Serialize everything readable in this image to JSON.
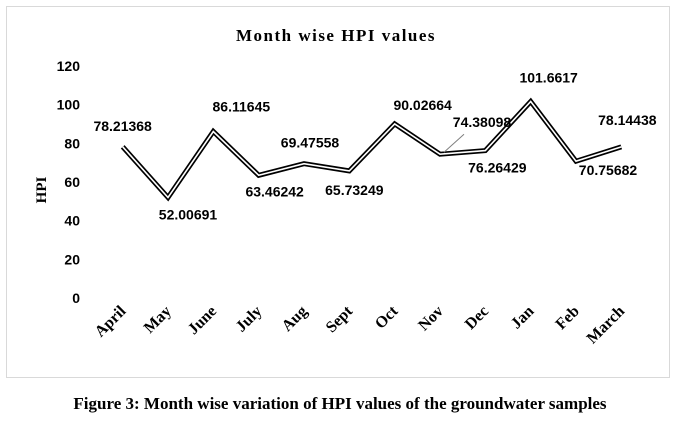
{
  "chart_data": {
    "type": "line",
    "title": "Month wise HPI values",
    "xlabel": "",
    "ylabel": "HPI",
    "ylim": [
      0,
      120
    ],
    "yticks": [
      0,
      20,
      40,
      60,
      80,
      100,
      120
    ],
    "grid": false,
    "legend": "none",
    "categories": [
      "April",
      "May",
      "June",
      "July",
      "Aug",
      "Sept",
      "Oct",
      "Nov",
      "Dec",
      "Jan",
      "Feb",
      "March"
    ],
    "series": [
      {
        "values": [
          78.21368,
          52.00691,
          86.11645,
          63.46242,
          69.47558,
          65.73249,
          90.02664,
          74.38098,
          76.26429,
          101.6617,
          70.75682,
          78.14438
        ],
        "labels": [
          "78.21368",
          "52.00691",
          "86.11645",
          "63.46242",
          "69.47558",
          "65.73249",
          "90.02664",
          "74.38098",
          "76.26429",
          "101.6617",
          "70.75682",
          "78.14438"
        ],
        "color": "#000000",
        "line_style": "double"
      }
    ]
  },
  "caption": "Figure 3: Month wise variation of HPI values of the groundwater samples"
}
